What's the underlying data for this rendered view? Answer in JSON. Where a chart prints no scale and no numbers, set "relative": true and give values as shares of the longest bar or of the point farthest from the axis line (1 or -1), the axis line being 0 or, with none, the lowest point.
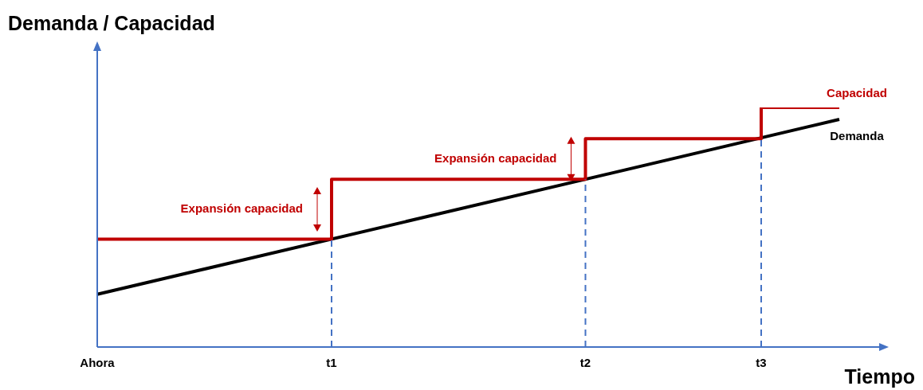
{
  "chart_data": {
    "type": "line",
    "title": "Demanda / Capacidad",
    "xlabel": "Tiempo",
    "relative": true,
    "categories": [
      "Ahora",
      null,
      null,
      null,
      null,
      null,
      null,
      null,
      null,
      null,
      null,
      null,
      "t1",
      null,
      null,
      null,
      null,
      null,
      null,
      null,
      null,
      null,
      null,
      null,
      null,
      "t2",
      null,
      null,
      null,
      null,
      null,
      null,
      null,
      null,
      "t3",
      null,
      null,
      null,
      null
    ],
    "series": [
      {
        "name": "Capacidad",
        "type": "step",
        "color": "#c00000",
        "values": [
          0.45,
          null,
          null,
          null,
          null,
          null,
          null,
          null,
          null,
          null,
          null,
          null,
          0.7,
          null,
          null,
          null,
          null,
          null,
          null,
          null,
          null,
          null,
          null,
          null,
          null,
          0.87,
          null,
          null,
          null,
          null,
          null,
          null,
          null,
          null,
          1.0,
          null,
          null,
          null,
          1.0
        ]
      },
      {
        "name": "Demanda",
        "type": "line",
        "color": "#000000",
        "values": [
          0.22,
          null,
          null,
          null,
          null,
          null,
          null,
          null,
          null,
          null,
          null,
          null,
          null,
          null,
          null,
          null,
          null,
          null,
          null,
          null,
          null,
          null,
          null,
          null,
          null,
          null,
          null,
          null,
          null,
          null,
          null,
          null,
          null,
          null,
          null,
          null,
          null,
          null,
          0.95
        ]
      }
    ],
    "ref_lines": [
      {
        "axis": "x",
        "value": "t1",
        "color": "#4472c4",
        "line_style": "dashed"
      },
      {
        "axis": "x",
        "value": "t2",
        "color": "#4472c4",
        "line_style": "dashed"
      },
      {
        "axis": "x",
        "value": "t3",
        "color": "#4472c4",
        "line_style": "dashed"
      }
    ],
    "annotations": [
      {
        "text": "Expansión capacidad",
        "x": "t1",
        "y": 0.575
      },
      {
        "text": "Expansión capacidad",
        "x": "t2",
        "y": 0.785
      }
    ],
    "grid": false,
    "legend": false,
    "marker": "none",
    "line_style": "solid"
  }
}
